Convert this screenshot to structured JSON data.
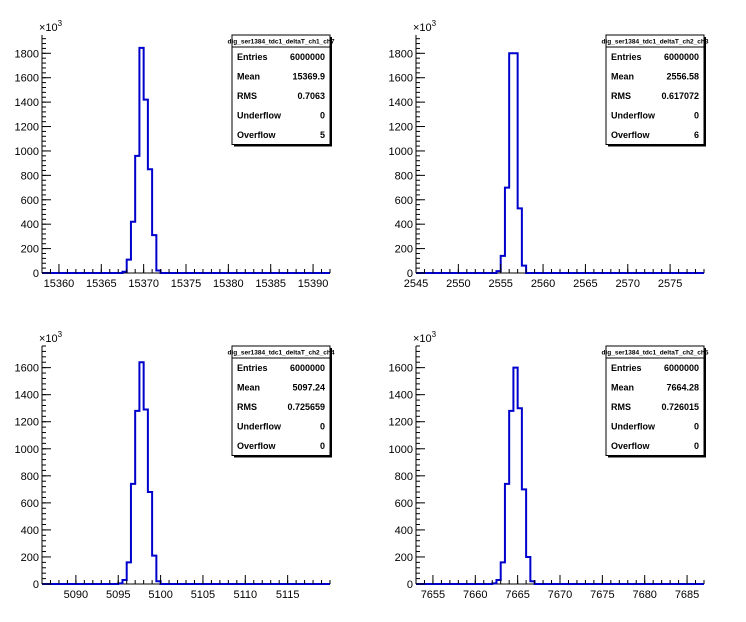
{
  "chart_data": [
    {
      "type": "bar",
      "title": "dig_ser1384_tdc1_deltaT_ch1_ch7",
      "y_multiplier": "×10",
      "y_multiplier_exp": "3",
      "xlim": [
        15358,
        15392
      ],
      "ylim": [
        0,
        1950
      ],
      "x_ticks": [
        15360,
        15365,
        15370,
        15375,
        15380,
        15385,
        15390
      ],
      "y_ticks": [
        0,
        200,
        400,
        600,
        800,
        1000,
        1200,
        1400,
        1600,
        1800
      ],
      "bin_edges": [
        15367.5,
        15368.0,
        15368.5,
        15369.0,
        15369.5,
        15370.0,
        15370.5,
        15371.0,
        15371.5,
        15372.0
      ],
      "values": [
        10,
        110,
        420,
        960,
        1845,
        1420,
        850,
        310,
        20
      ],
      "color": "#0000cc",
      "stats": [
        {
          "label": "Entries",
          "value": "6000000"
        },
        {
          "label": "Mean",
          "value": "15369.9"
        },
        {
          "label": "RMS",
          "value": "0.7063"
        },
        {
          "label": "Underflow",
          "value": "0"
        },
        {
          "label": "Overflow",
          "value": "5"
        }
      ]
    },
    {
      "type": "bar",
      "title": "dig_ser1384_tdc1_deltaT_ch2_ch3",
      "y_multiplier": "×10",
      "y_multiplier_exp": "3",
      "xlim": [
        2545,
        2579
      ],
      "ylim": [
        0,
        1950
      ],
      "x_ticks": [
        2545,
        2550,
        2555,
        2560,
        2565,
        2570,
        2575
      ],
      "y_ticks": [
        0,
        200,
        400,
        600,
        800,
        1000,
        1200,
        1400,
        1600,
        1800
      ],
      "bin_edges": [
        2554.5,
        2555.0,
        2555.5,
        2556.0,
        2556.5,
        2557.0,
        2557.5,
        2558.0
      ],
      "values": [
        15,
        140,
        700,
        1800,
        1800,
        530,
        60
      ],
      "color": "#0000cc",
      "stats": [
        {
          "label": "Entries",
          "value": "6000000"
        },
        {
          "label": "Mean",
          "value": "2556.58"
        },
        {
          "label": "RMS",
          "value": "0.617072"
        },
        {
          "label": "Underflow",
          "value": "0"
        },
        {
          "label": "Overflow",
          "value": "6"
        }
      ]
    },
    {
      "type": "bar",
      "title": "dig_ser1384_tdc1_deltaT_ch2_ch4",
      "y_multiplier": "×10",
      "y_multiplier_exp": "3",
      "xlim": [
        5086,
        5120
      ],
      "ylim": [
        0,
        1760
      ],
      "x_ticks": [
        5090,
        5095,
        5100,
        5105,
        5110,
        5115
      ],
      "y_ticks": [
        0,
        200,
        400,
        600,
        800,
        1000,
        1200,
        1400,
        1600
      ],
      "bin_edges": [
        5095.0,
        5095.5,
        5096.0,
        5096.5,
        5097.0,
        5097.5,
        5098.0,
        5098.5,
        5099.0,
        5099.5,
        5100.0
      ],
      "values": [
        5,
        30,
        160,
        740,
        1280,
        1640,
        1290,
        680,
        210,
        20
      ],
      "color": "#0000cc",
      "stats": [
        {
          "label": "Entries",
          "value": "6000000"
        },
        {
          "label": "Mean",
          "value": "5097.24"
        },
        {
          "label": "RMS",
          "value": "0.725659"
        },
        {
          "label": "Underflow",
          "value": "0"
        },
        {
          "label": "Overflow",
          "value": "0"
        }
      ]
    },
    {
      "type": "bar",
      "title": "dig_ser1384_tdc1_deltaT_ch2_ch5",
      "y_multiplier": "×10",
      "y_multiplier_exp": "3",
      "xlim": [
        7653,
        7687
      ],
      "ylim": [
        0,
        1760
      ],
      "x_ticks": [
        7655,
        7660,
        7665,
        7670,
        7675,
        7680,
        7685
      ],
      "y_ticks": [
        0,
        200,
        400,
        600,
        800,
        1000,
        1200,
        1400,
        1600
      ],
      "bin_edges": [
        7662.0,
        7662.5,
        7663.0,
        7663.5,
        7664.0,
        7664.5,
        7665.0,
        7665.5,
        7666.0,
        7666.5,
        7667.0
      ],
      "values": [
        5,
        30,
        160,
        740,
        1280,
        1600,
        1300,
        700,
        200,
        20
      ],
      "color": "#0000cc",
      "stats": [
        {
          "label": "Entries",
          "value": "6000000"
        },
        {
          "label": "Mean",
          "value": "7664.28"
        },
        {
          "label": "RMS",
          "value": "0.726015"
        },
        {
          "label": "Underflow",
          "value": "0"
        },
        {
          "label": "Overflow",
          "value": "0"
        }
      ]
    }
  ]
}
